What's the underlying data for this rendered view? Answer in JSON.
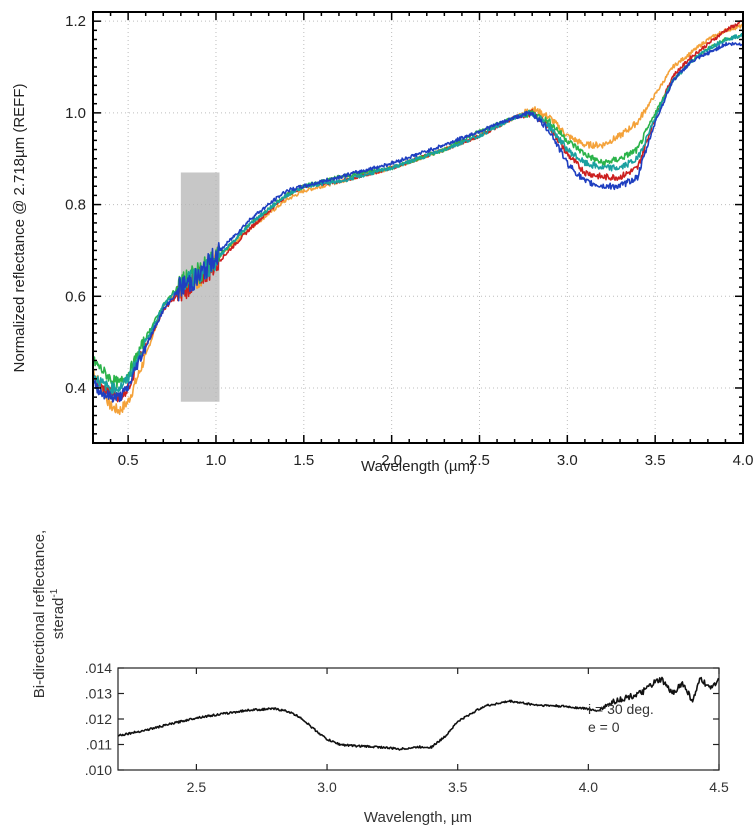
{
  "chart_data": [
    {
      "type": "line",
      "title": "",
      "xlabel": "Wavelength (µm)",
      "ylabel": "Normalized reflectance @ 2.718µm (REFF)",
      "xlim": [
        0.3,
        4.0
      ],
      "ylim": [
        0.28,
        1.22
      ],
      "xticks": [
        0.5,
        1.0,
        1.5,
        2.0,
        2.5,
        3.0,
        3.5,
        4.0
      ],
      "xtick_labels": [
        "0.5",
        "1.0",
        "1.5",
        "2.0",
        "2.5",
        "3.0",
        "3.5",
        "4.0"
      ],
      "yticks": [
        0.4,
        0.6,
        0.8,
        1.0,
        1.2
      ],
      "ytick_labels": [
        "0.4",
        "0.6",
        "0.8",
        "1.0",
        "1.2"
      ],
      "grid": true,
      "shaded_region": {
        "x": [
          0.8,
          1.02
        ],
        "y": [
          0.37,
          0.87
        ],
        "color": "#b4b4b4"
      },
      "colors": {
        "orange": "#f4a23a",
        "red": "#cc2020",
        "green": "#2bb34a",
        "teal": "#1aa0a0",
        "blue": "#1f3fc0"
      },
      "series": [
        {
          "color": "#f4a23a",
          "x": [
            0.3,
            0.35,
            0.4,
            0.45,
            0.5,
            0.55,
            0.6,
            0.7,
            0.8,
            0.9,
            1.0,
            1.2,
            1.4,
            1.5,
            1.7,
            2.0,
            2.3,
            2.5,
            2.7,
            2.8,
            2.9,
            3.0,
            3.1,
            3.2,
            3.3,
            3.4,
            3.5,
            3.6,
            3.7,
            3.8,
            3.9,
            4.0
          ],
          "y": [
            0.44,
            0.4,
            0.36,
            0.35,
            0.37,
            0.42,
            0.47,
            0.58,
            0.62,
            0.64,
            0.68,
            0.75,
            0.81,
            0.83,
            0.85,
            0.88,
            0.92,
            0.95,
            0.99,
            1.01,
            0.99,
            0.95,
            0.93,
            0.93,
            0.95,
            0.98,
            1.04,
            1.1,
            1.13,
            1.16,
            1.18,
            1.19
          ]
        },
        {
          "color": "#cc2020",
          "x": [
            0.3,
            0.35,
            0.4,
            0.45,
            0.5,
            0.55,
            0.6,
            0.7,
            0.8,
            0.9,
            1.0,
            1.2,
            1.4,
            1.5,
            1.7,
            2.0,
            2.3,
            2.5,
            2.7,
            2.8,
            2.9,
            3.0,
            3.1,
            3.2,
            3.3,
            3.4,
            3.5,
            3.6,
            3.7,
            3.8,
            3.9,
            4.0
          ],
          "y": [
            0.42,
            0.4,
            0.39,
            0.38,
            0.4,
            0.45,
            0.49,
            0.57,
            0.61,
            0.64,
            0.67,
            0.75,
            0.82,
            0.84,
            0.85,
            0.88,
            0.92,
            0.95,
            0.99,
            1.0,
            0.97,
            0.91,
            0.87,
            0.86,
            0.86,
            0.88,
            0.99,
            1.08,
            1.12,
            1.15,
            1.18,
            1.2
          ]
        },
        {
          "color": "#2bb34a",
          "x": [
            0.3,
            0.35,
            0.4,
            0.45,
            0.5,
            0.55,
            0.6,
            0.7,
            0.8,
            0.9,
            1.0,
            1.2,
            1.4,
            1.5,
            1.7,
            2.0,
            2.3,
            2.5,
            2.7,
            2.8,
            2.9,
            3.0,
            3.1,
            3.2,
            3.3,
            3.4,
            3.5,
            3.6,
            3.7,
            3.8,
            3.9,
            4.0
          ],
          "y": [
            0.46,
            0.44,
            0.42,
            0.41,
            0.43,
            0.47,
            0.51,
            0.58,
            0.63,
            0.65,
            0.68,
            0.76,
            0.82,
            0.84,
            0.86,
            0.88,
            0.92,
            0.96,
            0.99,
            1.0,
            0.98,
            0.94,
            0.91,
            0.89,
            0.9,
            0.92,
            1.0,
            1.07,
            1.11,
            1.14,
            1.16,
            1.17
          ]
        },
        {
          "color": "#1aa0a0",
          "x": [
            0.3,
            0.35,
            0.4,
            0.45,
            0.5,
            0.55,
            0.6,
            0.7,
            0.8,
            0.9,
            1.0,
            1.2,
            1.4,
            1.5,
            1.7,
            2.0,
            2.3,
            2.5,
            2.7,
            2.8,
            2.9,
            3.0,
            3.1,
            3.2,
            3.3,
            3.4,
            3.5,
            3.6,
            3.7,
            3.8,
            3.9,
            4.0
          ],
          "y": [
            0.43,
            0.41,
            0.4,
            0.4,
            0.42,
            0.46,
            0.5,
            0.58,
            0.62,
            0.65,
            0.68,
            0.76,
            0.82,
            0.84,
            0.85,
            0.88,
            0.92,
            0.95,
            0.99,
            1.0,
            0.97,
            0.92,
            0.89,
            0.88,
            0.88,
            0.9,
            0.99,
            1.07,
            1.11,
            1.14,
            1.16,
            1.17
          ]
        },
        {
          "color": "#1f3fc0",
          "x": [
            0.3,
            0.35,
            0.4,
            0.45,
            0.5,
            0.55,
            0.6,
            0.7,
            0.8,
            0.9,
            1.0,
            1.2,
            1.4,
            1.5,
            1.7,
            2.0,
            2.3,
            2.5,
            2.7,
            2.8,
            2.9,
            3.0,
            3.1,
            3.2,
            3.3,
            3.4,
            3.5,
            3.6,
            3.7,
            3.8,
            3.9,
            4.0
          ],
          "y": [
            0.41,
            0.39,
            0.38,
            0.38,
            0.4,
            0.45,
            0.49,
            0.57,
            0.62,
            0.64,
            0.69,
            0.77,
            0.83,
            0.84,
            0.86,
            0.89,
            0.93,
            0.96,
            0.99,
            1.0,
            0.96,
            0.89,
            0.85,
            0.84,
            0.84,
            0.86,
            0.98,
            1.07,
            1.11,
            1.13,
            1.15,
            1.15
          ]
        }
      ]
    },
    {
      "type": "line",
      "title": "",
      "xlabel": "Wavelength, µm",
      "ylabel": "Bi-directional reflectance,",
      "ylabel2": "sterad",
      "ylabel2_superscript": "-1",
      "xlim": [
        2.2,
        4.5
      ],
      "ylim": [
        0.01,
        0.014
      ],
      "xticks": [
        2.5,
        3.0,
        3.5,
        4.0,
        4.5
      ],
      "xtick_labels": [
        "2.5",
        "3.0",
        "3.5",
        "4.0",
        "4.5"
      ],
      "yticks": [
        0.01,
        0.011,
        0.012,
        0.013,
        0.014
      ],
      "ytick_labels": [
        ".010",
        ".011",
        ".012",
        ".013",
        ".014"
      ],
      "grid": false,
      "annotations": [
        "i = 30 deg.",
        "e = 0"
      ],
      "series": [
        {
          "color": "#111111",
          "x": [
            2.2,
            2.3,
            2.4,
            2.5,
            2.6,
            2.7,
            2.8,
            2.85,
            2.9,
            2.95,
            3.0,
            3.05,
            3.1,
            3.2,
            3.28,
            3.35,
            3.4,
            3.45,
            3.5,
            3.6,
            3.7,
            3.8,
            3.9,
            4.0,
            4.03,
            4.1,
            4.2,
            4.25,
            4.28,
            4.32,
            4.36,
            4.4,
            4.43,
            4.46,
            4.5
          ],
          "y": [
            0.01135,
            0.01155,
            0.0118,
            0.01205,
            0.0122,
            0.01235,
            0.0124,
            0.0123,
            0.01205,
            0.0116,
            0.0112,
            0.011,
            0.01095,
            0.0109,
            0.01082,
            0.0109,
            0.0109,
            0.0113,
            0.0119,
            0.0125,
            0.0127,
            0.01255,
            0.0125,
            0.0124,
            0.0123,
            0.0127,
            0.013,
            0.0134,
            0.01355,
            0.013,
            0.0134,
            0.0127,
            0.0136,
            0.0132,
            0.01355
          ]
        }
      ]
    }
  ]
}
